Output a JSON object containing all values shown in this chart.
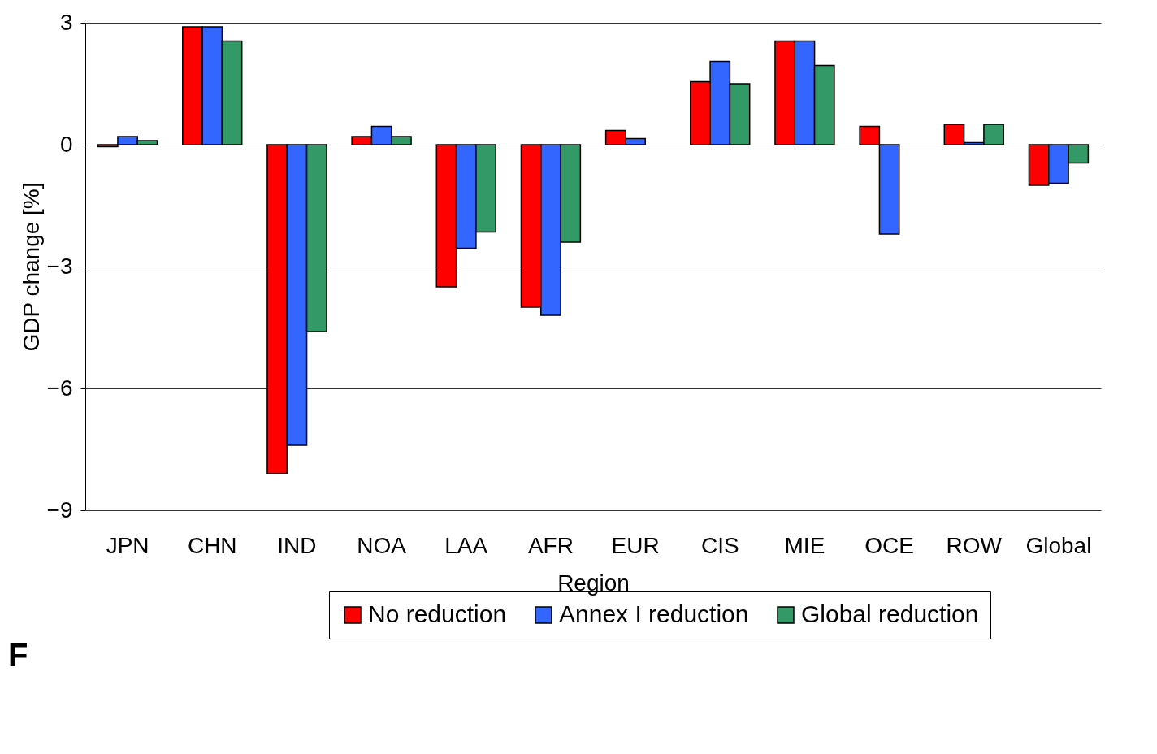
{
  "chart_data": {
    "type": "bar",
    "xlabel": "Region",
    "ylabel": "GDP change [%]",
    "categories": [
      "JPN",
      "CHN",
      "IND",
      "NOA",
      "LAA",
      "AFR",
      "EUR",
      "CIS",
      "MIE",
      "OCE",
      "ROW",
      "Global"
    ],
    "series": [
      {
        "name": "No reduction",
        "color": "#ff0000",
        "values": [
          -0.05,
          2.9,
          -8.1,
          0.2,
          -3.5,
          -4.0,
          0.35,
          1.55,
          2.55,
          0.45,
          0.5,
          -1.0
        ]
      },
      {
        "name": "Annex I reduction",
        "color": "#3366ff",
        "values": [
          0.2,
          2.9,
          -7.4,
          0.45,
          -2.55,
          -4.2,
          0.15,
          2.05,
          2.55,
          -2.2,
          0.05,
          -0.95
        ]
      },
      {
        "name": "Global reduction",
        "color": "#339966",
        "values": [
          0.1,
          2.55,
          -4.6,
          0.2,
          -2.15,
          -2.4,
          null,
          1.5,
          1.95,
          null,
          0.5,
          -0.45
        ]
      }
    ],
    "ylim": [
      -9,
      3
    ],
    "yticks": [
      -9,
      -6,
      -3,
      0,
      3
    ],
    "grid": "y",
    "legend": "bottom",
    "annotations": [
      "F"
    ]
  }
}
